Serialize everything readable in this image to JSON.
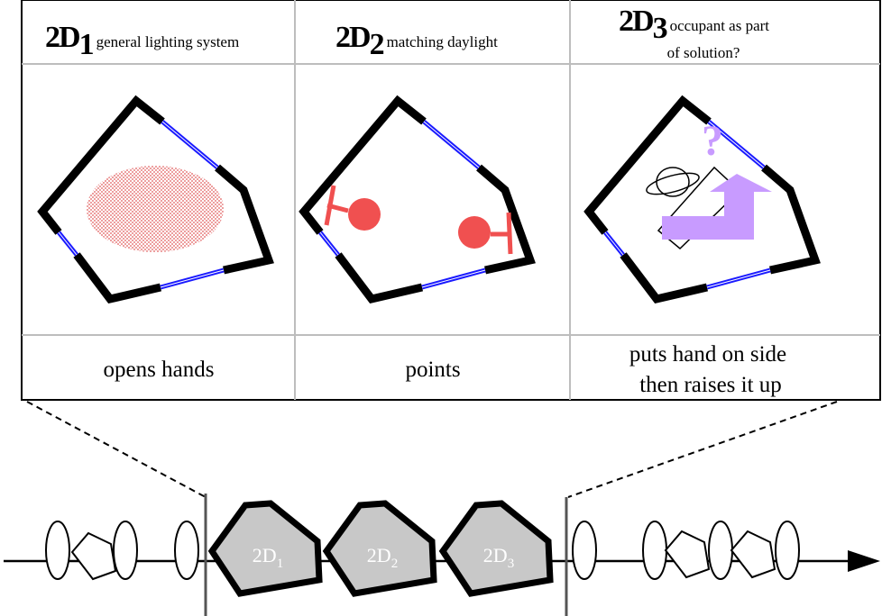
{
  "panels": [
    {
      "id": "2D",
      "id_sub": "1",
      "description": "general lighting system",
      "caption": "opens hands"
    },
    {
      "id": "2D",
      "id_sub": "2",
      "description": "matching daylight",
      "caption": "points"
    },
    {
      "id": "2D",
      "id_sub": "3",
      "description_line1": "occupant as part",
      "description_line2": "of solution?",
      "caption_line1": "puts hand on side",
      "caption_line2": "then raises it up"
    }
  ],
  "timeline": {
    "labels": [
      {
        "text": "2D",
        "sub": "1"
      },
      {
        "text": "2D",
        "sub": "2"
      },
      {
        "text": "2D",
        "sub": "3"
      }
    ]
  },
  "icons": {
    "question_mark": "?"
  },
  "colors": {
    "wall": "#000000",
    "window": "#1a1aff",
    "light_dots": "#e05a5a",
    "lamp": "#f05050",
    "occupant": "#c89bff",
    "highlight_fill": "#c8c8c8"
  }
}
